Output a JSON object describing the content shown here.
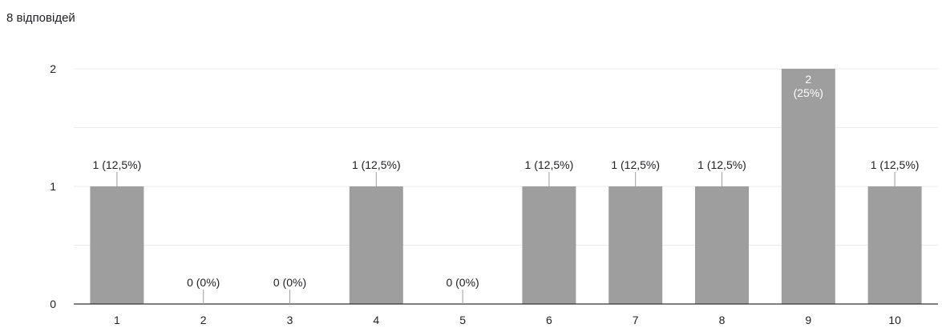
{
  "header": {
    "response_count": "8 відповідей"
  },
  "chart_data": {
    "type": "bar",
    "categories": [
      "1",
      "2",
      "3",
      "4",
      "5",
      "6",
      "7",
      "8",
      "9",
      "10"
    ],
    "values": [
      1,
      0,
      0,
      1,
      0,
      1,
      1,
      1,
      2,
      1
    ],
    "data_labels": [
      "1 (12,5%)",
      "0 (0%)",
      "0 (0%)",
      "1 (12,5%)",
      "0 (0%)",
      "1 (12,5%)",
      "1 (12,5%)",
      "1 (12,5%)",
      "2 (25%)",
      "1 (12,5%)"
    ],
    "y_ticks": [
      "0",
      "1",
      "2"
    ],
    "ylim": [
      0,
      2
    ],
    "title": "",
    "xlabel": "",
    "ylabel": "",
    "grid": true,
    "legend": "none",
    "colors": {
      "bar": "#9e9e9e",
      "grid": "#ebebeb",
      "axis": "#333333",
      "leader": "#9e9e9e",
      "label_inside": "#ffffff"
    }
  }
}
